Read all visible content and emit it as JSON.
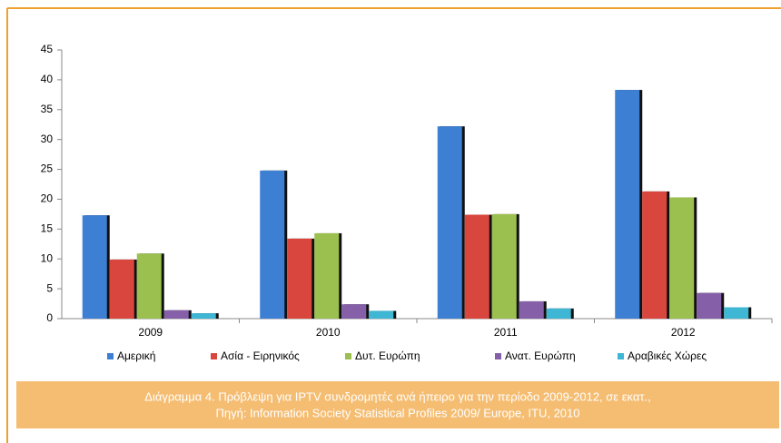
{
  "chart_data": {
    "type": "bar",
    "categories": [
      "2009",
      "2010",
      "2011",
      "2012"
    ],
    "series": [
      {
        "name": "Αμερική",
        "color": "#3d7fd3",
        "values": [
          17.3,
          24.8,
          32.2,
          38.3
        ]
      },
      {
        "name": "Ασία - Ειρηνικός",
        "color": "#d9463d",
        "values": [
          9.9,
          13.4,
          17.4,
          21.3
        ]
      },
      {
        "name": "Δυτ. Ευρώπη",
        "color": "#9bc04f",
        "values": [
          10.9,
          14.3,
          17.5,
          20.3
        ]
      },
      {
        "name": "Ανατ. Ευρώπη",
        "color": "#8560a8",
        "values": [
          1.4,
          2.4,
          2.9,
          4.3
        ]
      },
      {
        "name": "Αραβικές Χώρες",
        "color": "#3fb6d3",
        "values": [
          0.9,
          1.3,
          1.7,
          1.9
        ]
      }
    ],
    "ylim": [
      0,
      45
    ],
    "yticks": [
      0,
      5,
      10,
      15,
      20,
      25,
      30,
      35,
      40,
      45
    ],
    "caption": [
      "Διάγραμμα 4. Πρόβλεψη για IPTV συνδρομητές ανά ήπειρο για την περίοδο 2009-2012, σε εκατ.,",
      "Πηγή: Information Society Statistical Profiles 2009/ Europe, ITU, 2010"
    ]
  }
}
